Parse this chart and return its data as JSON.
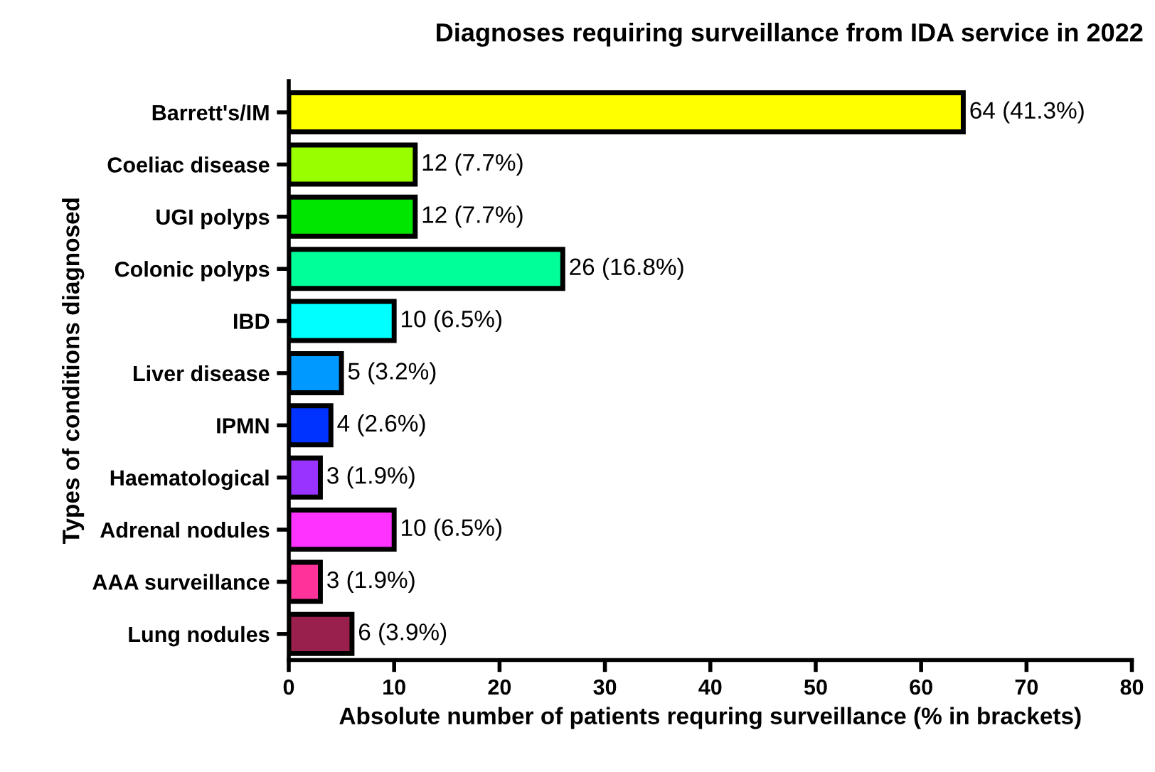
{
  "chart_data": {
    "type": "bar",
    "orientation": "horizontal",
    "title": "Diagnoses requiring surveillance from IDA service in 2022",
    "xlabel": "Absolute number of patients requring surveillance (% in brackets)",
    "ylabel": "Types of conditions diagnosed",
    "categories": [
      "Barrett's/IM",
      "Coeliac disease",
      "UGI polyps",
      "Colonic polyps",
      "IBD",
      "Liver disease",
      "IPMN",
      "Haematological",
      "Adrenal nodules",
      "AAA surveillance",
      "Lung nodules"
    ],
    "values": [
      64,
      12,
      12,
      26,
      10,
      5,
      4,
      3,
      10,
      3,
      6
    ],
    "colors": [
      "#ffff00",
      "#99ff00",
      "#00e600",
      "#00ff99",
      "#00ffff",
      "#0099ff",
      "#0033ff",
      "#9933ff",
      "#ff33ff",
      "#ff3399",
      "#99204d"
    ],
    "value_labels": [
      "64 (41.3%)",
      "12 (7.7%)",
      "12 (7.7%)",
      "26 (16.8%)",
      "10 (6.5%)",
      "5 (3.2%)",
      "4 (2.6%)",
      "3 (1.9%)",
      "10 (6.5%)",
      "3 (1.9%)",
      "6 (3.9%)"
    ],
    "xlim": [
      0,
      80
    ],
    "xticks": [
      0,
      10,
      20,
      30,
      40,
      50,
      60,
      70,
      80
    ],
    "grid": false,
    "legend": false
  }
}
